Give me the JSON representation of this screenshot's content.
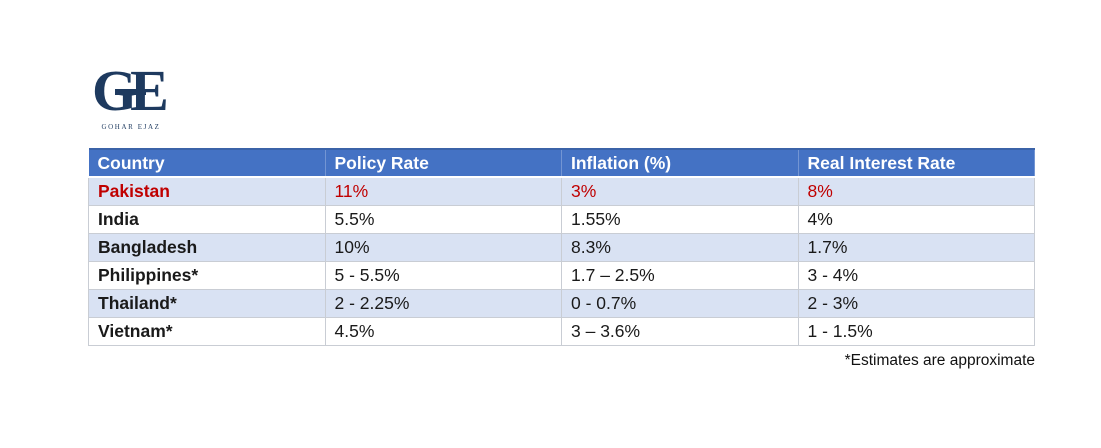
{
  "logo": {
    "monogram_g": "G",
    "monogram_e": "E",
    "name": "GOHAR EJAZ"
  },
  "table": {
    "columns": [
      "Country",
      "Policy Rate",
      "Inflation (%)",
      "Real Interest Rate"
    ],
    "rows": [
      {
        "country": "Pakistan",
        "policy_rate": "11%",
        "inflation": "3%",
        "real_interest_rate": "8%",
        "highlight": true
      },
      {
        "country": "India",
        "policy_rate": "5.5%",
        "inflation": "1.55%",
        "real_interest_rate": "4%",
        "highlight": false
      },
      {
        "country": "Bangladesh",
        "policy_rate": "10%",
        "inflation": "8.3%",
        "real_interest_rate": "1.7%",
        "highlight": false
      },
      {
        "country": "Philippines*",
        "policy_rate": "5 - 5.5%",
        "inflation": "1.7 – 2.5%",
        "real_interest_rate": "3 - 4%",
        "highlight": false
      },
      {
        "country": "Thailand*",
        "policy_rate": "2 - 2.25%",
        "inflation": "0 - 0.7%",
        "real_interest_rate": "2 - 3%",
        "highlight": false
      },
      {
        "country": "Vietnam*",
        "policy_rate": "4.5%",
        "inflation": "3 – 3.6%",
        "real_interest_rate": "1 - 1.5%",
        "highlight": false
      }
    ]
  },
  "footnote": "*Estimates are approximate",
  "colors": {
    "header_bg": "#4472C4",
    "band_bg": "#D9E2F3",
    "highlight_text": "#C00000",
    "logo_navy": "#1E3A5F"
  },
  "chart_data": {
    "type": "table",
    "title": "",
    "columns": [
      "Country",
      "Policy Rate",
      "Inflation (%)",
      "Real Interest Rate"
    ],
    "rows": [
      [
        "Pakistan",
        "11%",
        "3%",
        "8%"
      ],
      [
        "India",
        "5.5%",
        "1.55%",
        "4%"
      ],
      [
        "Bangladesh",
        "10%",
        "8.3%",
        "1.7%"
      ],
      [
        "Philippines*",
        "5 - 5.5%",
        "1.7 – 2.5%",
        "3 - 4%"
      ],
      [
        "Thailand*",
        "2 - 2.25%",
        "0 - 0.7%",
        "2 - 3%"
      ],
      [
        "Vietnam*",
        "4.5%",
        "3 – 3.6%",
        "1 - 1.5%"
      ]
    ],
    "annotations": [
      "*Estimates are approximate"
    ],
    "layout_hints": {
      "header_fill": "#4472C4",
      "banded_rows": true,
      "highlight_row": "Pakistan"
    }
  }
}
